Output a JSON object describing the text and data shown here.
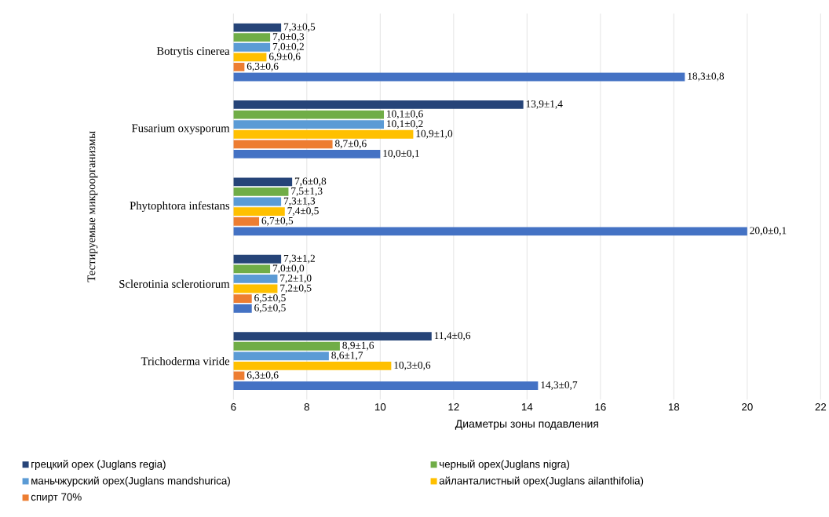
{
  "chart_data": {
    "type": "bar",
    "orientation": "horizontal",
    "xlabel": "Диаметры зоны подавления",
    "ylabel": "Тестируемые микроорганизмы",
    "categories": [
      "Botrytis cinerea",
      "Fusarium oxysporum",
      "Phytophtora infestans",
      "Sclerotinia sclerotiorum",
      "Trichoderma viride"
    ],
    "xlim": [
      6,
      22
    ],
    "xticks": [
      6,
      8,
      10,
      12,
      14,
      16,
      18,
      20,
      22
    ],
    "grid": "x",
    "legend": "bottom",
    "series": [
      {
        "name": "грецкий орех (Juglans regia)",
        "color": "#264478",
        "values": [
          7.3,
          13.9,
          7.6,
          7.3,
          11.4
        ],
        "value_labels": [
          "7,3±0,5",
          "13,9±1,4",
          "7,6±0,8",
          "7,3±1,2",
          "11,4±0,6"
        ]
      },
      {
        "name": "черный орех(Juglans nigra)",
        "color": "#70ad47",
        "values": [
          7.0,
          10.1,
          7.5,
          7.0,
          8.9
        ],
        "value_labels": [
          "7,0±0,3",
          "10,1±0,6",
          "7,5±1,3",
          "7,0±0,0",
          "8,9±1,6"
        ]
      },
      {
        "name": "маньчжурский орех(Juglans mandshurica)",
        "color": "#5b9bd5",
        "values": [
          7.0,
          10.1,
          7.3,
          7.2,
          8.6
        ],
        "value_labels": [
          "7,0±0,2",
          "10,1±0,2",
          "7,3±1,3",
          "7,2±1,0",
          "8,6±1,7"
        ]
      },
      {
        "name": "айланталистный  орех(Juglans ailanthifolia)",
        "color": "#ffc000",
        "values": [
          6.9,
          10.9,
          7.4,
          7.2,
          10.3
        ],
        "value_labels": [
          "6,9±0,6",
          "10,9±1,0",
          "7,4±0,5",
          "7,2±0,5",
          "10,3±0,6"
        ]
      },
      {
        "name": "спирт 70%",
        "color": "#ed7d31",
        "values": [
          6.3,
          8.7,
          6.7,
          6.5,
          6.3
        ],
        "value_labels": [
          "6,3±0,6",
          "8,7±0,6",
          "6,7±0,5",
          "6,5±0,5",
          "6,3±0,6"
        ]
      },
      {
        "color": "#4472c4",
        "values": [
          18.3,
          10.0,
          20.0,
          6.5,
          14.3
        ],
        "value_labels": [
          "18,3±0,8",
          "10,0±0,1",
          "20,0±0,1",
          "6,5±0,5",
          "14,3±0,7"
        ]
      }
    ]
  }
}
